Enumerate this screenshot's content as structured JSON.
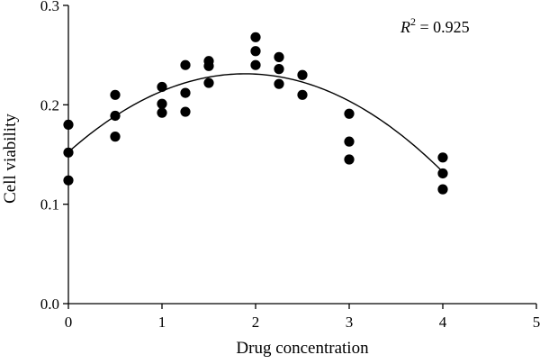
{
  "chart_data": {
    "type": "scatter",
    "xlabel": "Drug concentration",
    "ylabel": "Cell viability",
    "xlim": [
      0,
      5
    ],
    "ylim": [
      0,
      0.3
    ],
    "x_ticks": [
      "0",
      "1",
      "2",
      "3",
      "4",
      "5"
    ],
    "y_ticks": [
      "0.0",
      "0.1",
      "0.2",
      "0.3"
    ],
    "grid": false,
    "annotation": {
      "r_symbol": "R",
      "r_exponent": "2",
      "r_value": " = 0.925"
    },
    "points": [
      [
        0,
        0.18
      ],
      [
        0,
        0.152
      ],
      [
        0,
        0.124
      ],
      [
        0.5,
        0.21
      ],
      [
        0.5,
        0.189
      ],
      [
        0.5,
        0.168
      ],
      [
        1,
        0.218
      ],
      [
        1,
        0.201
      ],
      [
        1,
        0.192
      ],
      [
        1.25,
        0.24
      ],
      [
        1.25,
        0.212
      ],
      [
        1.25,
        0.193
      ],
      [
        1.5,
        0.244
      ],
      [
        1.5,
        0.239
      ],
      [
        1.5,
        0.222
      ],
      [
        2,
        0.268
      ],
      [
        2,
        0.254
      ],
      [
        2,
        0.24
      ],
      [
        2.25,
        0.248
      ],
      [
        2.25,
        0.236
      ],
      [
        2.25,
        0.221
      ],
      [
        2.5,
        0.23
      ],
      [
        2.5,
        0.21
      ],
      [
        3,
        0.191
      ],
      [
        3,
        0.163
      ],
      [
        3,
        0.145
      ],
      [
        4,
        0.147
      ],
      [
        4,
        0.131
      ],
      [
        4,
        0.115
      ]
    ],
    "fit": {
      "type": "quadratic",
      "coefficients": [
        0.1525,
        0.0834,
        -0.0221
      ],
      "x_range": [
        0,
        4
      ]
    }
  }
}
